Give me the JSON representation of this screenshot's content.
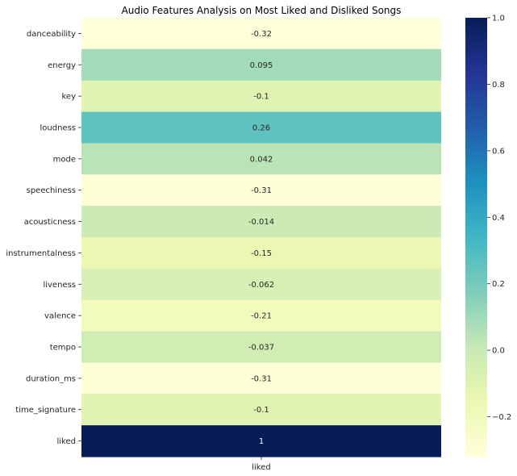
{
  "chart_data": {
    "type": "heatmap",
    "title": "Audio Features Analysis on Most Liked and Disliked Songs",
    "rows": [
      "danceability",
      "energy",
      "key",
      "loudness",
      "mode",
      "speechiness",
      "acousticness",
      "instrumentalness",
      "liveness",
      "valence",
      "tempo",
      "duration_ms",
      "time_signature",
      "liked"
    ],
    "columns": [
      "liked"
    ],
    "values": [
      -0.32,
      0.095,
      -0.1,
      0.26,
      0.042,
      -0.31,
      -0.014,
      -0.15,
      -0.062,
      -0.21,
      -0.037,
      -0.31,
      -0.1,
      1
    ],
    "value_labels": [
      "-0.32",
      "0.095",
      "-0.1",
      "0.26",
      "0.042",
      "-0.31",
      "-0.014",
      "-0.15",
      "-0.062",
      "-0.21",
      "-0.037",
      "-0.31",
      "-0.1",
      "1"
    ],
    "colormap": "YlGnBu",
    "colorbar": {
      "min": -0.32,
      "max": 1.0,
      "ticks": [
        -0.2,
        0.0,
        0.2,
        0.4,
        0.6,
        0.8,
        1.0
      ],
      "tick_labels": [
        "−0.2",
        "0.0",
        "0.2",
        "0.4",
        "0.6",
        "0.8",
        "1.0"
      ]
    }
  }
}
